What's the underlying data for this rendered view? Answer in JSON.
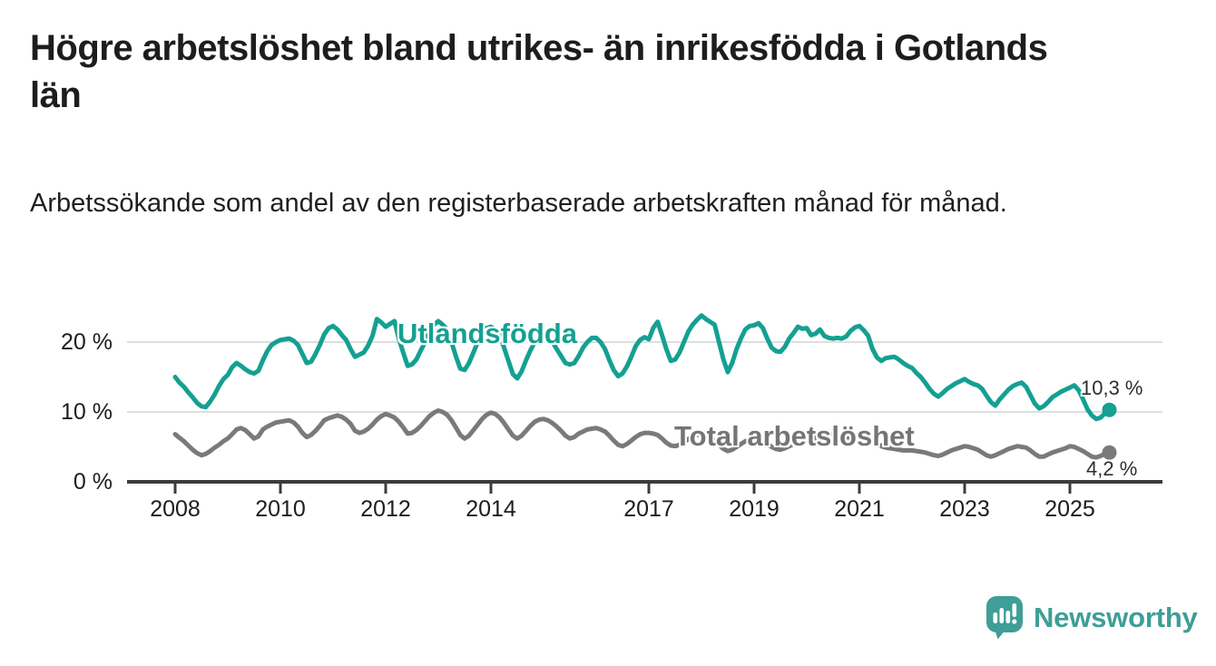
{
  "header": {
    "title": "Högre arbetslöshet bland utrikes- än inrikesfödda i Gotlands län",
    "subtitle": "Arbetssökande som andel av den registerbaserade arbetskraften månad för månad."
  },
  "chart_data": {
    "type": "line",
    "unit": "%",
    "frequency": "monthly",
    "x_start": "2008-01",
    "x_end": "2025-10",
    "grid": true,
    "legend": "inline-labels",
    "colors": {
      "axis": "#3c3c3c",
      "gridline": "#dedede",
      "tick_text": "#1d1d1b"
    },
    "x_axis": {
      "ticks": [
        {
          "year": 2008,
          "label": "2008"
        },
        {
          "year": 2010,
          "label": "2010"
        },
        {
          "year": 2012,
          "label": "2012"
        },
        {
          "year": 2014,
          "label": "2014"
        },
        {
          "year": 2017,
          "label": "2017"
        },
        {
          "year": 2019,
          "label": "2019"
        },
        {
          "year": 2021,
          "label": "2021"
        },
        {
          "year": 2023,
          "label": "2023"
        },
        {
          "year": 2025,
          "label": "2025"
        }
      ]
    },
    "y_axis": {
      "ylim": [
        0,
        25
      ],
      "ticks": [
        {
          "value": 0,
          "label": "0 %"
        },
        {
          "value": 10,
          "label": "10 %"
        },
        {
          "value": 20,
          "label": "20 %"
        }
      ]
    },
    "series": [
      {
        "name": "Utlandsfödda",
        "color": "#14a092",
        "end_label": "10,3 %",
        "end_value": 10.3,
        "values": [
          15.0,
          14.2,
          13.6,
          12.8,
          12.1,
          11.3,
          10.8,
          10.7,
          11.5,
          12.5,
          13.7,
          14.7,
          15.3,
          16.4,
          17.0,
          16.6,
          16.1,
          15.7,
          15.5,
          15.9,
          17.4,
          18.7,
          19.6,
          20.0,
          20.3,
          20.4,
          20.5,
          20.2,
          19.6,
          18.3,
          17.0,
          17.2,
          18.3,
          19.6,
          21.1,
          22.0,
          22.3,
          21.8,
          21.0,
          20.3,
          19.0,
          17.9,
          18.2,
          18.5,
          19.5,
          20.9,
          23.3,
          22.8,
          22.2,
          22.6,
          23.0,
          20.5,
          18.5,
          16.6,
          16.8,
          17.5,
          18.8,
          20.0,
          21.5,
          22.5,
          23.0,
          22.5,
          21.8,
          20.0,
          18.0,
          16.2,
          16.0,
          17.0,
          18.5,
          20.0,
          21.3,
          22.0,
          22.2,
          21.8,
          21.0,
          19.2,
          17.3,
          15.4,
          14.8,
          15.8,
          17.4,
          18.8,
          20.0,
          20.8,
          21.0,
          20.6,
          20.0,
          19.0,
          18.0,
          17.0,
          16.8,
          17.0,
          18.0,
          19.2,
          20.0,
          20.6,
          20.6,
          20.0,
          19.0,
          17.4,
          16.0,
          15.1,
          15.5,
          16.5,
          17.9,
          19.4,
          20.3,
          20.7,
          20.4,
          22.0,
          22.9,
          21.0,
          19.0,
          17.3,
          17.5,
          18.5,
          20.0,
          21.5,
          22.5,
          23.2,
          23.8,
          23.3,
          22.9,
          22.5,
          20.0,
          17.5,
          15.7,
          17.0,
          19.0,
          20.5,
          21.8,
          22.3,
          22.4,
          22.7,
          22.0,
          20.5,
          19.2,
          18.7,
          18.6,
          19.3,
          20.5,
          21.3,
          22.2,
          21.9,
          22.0,
          21.0,
          21.2,
          21.8,
          20.9,
          20.6,
          20.5,
          20.6,
          20.5,
          20.8,
          21.6,
          22.1,
          22.3,
          21.7,
          20.9,
          19.0,
          17.8,
          17.3,
          17.7,
          17.8,
          17.9,
          17.5,
          17.0,
          16.6,
          16.3,
          15.6,
          15.0,
          14.2,
          13.3,
          12.6,
          12.2,
          12.7,
          13.3,
          13.7,
          14.1,
          14.4,
          14.7,
          14.3,
          14.0,
          13.8,
          13.3,
          12.3,
          11.4,
          10.9,
          11.8,
          12.5,
          13.2,
          13.7,
          14.0,
          14.2,
          13.6,
          12.4,
          11.2,
          10.5,
          10.8,
          11.4,
          12.1,
          12.5,
          12.9,
          13.2,
          13.5,
          13.8,
          13.1,
          11.8,
          10.4,
          9.5,
          9.0,
          9.2,
          9.8,
          10.3
        ]
      },
      {
        "name": "Total arbetslöshet",
        "color": "#7a7a7a",
        "end_label": "4,2 %",
        "end_value": 4.2,
        "values": [
          6.8,
          6.3,
          5.8,
          5.2,
          4.6,
          4.1,
          3.8,
          4.0,
          4.4,
          4.9,
          5.3,
          5.8,
          6.2,
          6.8,
          7.5,
          7.7,
          7.4,
          6.8,
          6.2,
          6.5,
          7.5,
          7.9,
          8.2,
          8.5,
          8.6,
          8.7,
          8.8,
          8.5,
          7.9,
          7.0,
          6.4,
          6.7,
          7.3,
          8.0,
          8.8,
          9.1,
          9.3,
          9.5,
          9.3,
          8.9,
          8.3,
          7.3,
          7.0,
          7.2,
          7.6,
          8.2,
          8.9,
          9.4,
          9.7,
          9.5,
          9.2,
          8.6,
          7.8,
          6.9,
          7.0,
          7.4,
          8.0,
          8.7,
          9.4,
          9.9,
          10.2,
          10.0,
          9.6,
          8.8,
          7.8,
          6.7,
          6.2,
          6.6,
          7.4,
          8.2,
          9.0,
          9.6,
          9.9,
          9.7,
          9.2,
          8.4,
          7.5,
          6.6,
          6.2,
          6.6,
          7.3,
          8.0,
          8.6,
          8.9,
          9.0,
          8.8,
          8.4,
          7.9,
          7.3,
          6.6,
          6.2,
          6.4,
          6.9,
          7.2,
          7.5,
          7.6,
          7.7,
          7.5,
          7.2,
          6.6,
          5.9,
          5.3,
          5.1,
          5.4,
          5.9,
          6.4,
          6.8,
          7.0,
          7.0,
          6.9,
          6.7,
          6.2,
          5.6,
          5.2,
          5.1,
          5.3,
          5.7,
          6.1,
          6.5,
          6.7,
          6.8,
          6.6,
          6.4,
          5.9,
          5.3,
          4.7,
          4.4,
          4.6,
          5.0,
          5.4,
          5.8,
          6.0,
          6.1,
          6.0,
          5.8,
          5.4,
          5.0,
          4.7,
          4.6,
          4.8,
          5.1,
          5.4,
          5.6,
          5.8,
          5.9,
          5.9,
          6.2,
          6.8,
          7.0,
          6.9,
          6.8,
          6.7,
          6.6,
          6.4,
          6.3,
          6.3,
          6.4,
          6.3,
          6.1,
          5.8,
          5.5,
          5.1,
          4.9,
          4.8,
          4.7,
          4.6,
          4.5,
          4.5,
          4.5,
          4.4,
          4.3,
          4.2,
          4.0,
          3.8,
          3.7,
          3.9,
          4.2,
          4.5,
          4.7,
          4.9,
          5.1,
          5.0,
          4.8,
          4.6,
          4.2,
          3.8,
          3.6,
          3.8,
          4.1,
          4.4,
          4.7,
          4.9,
          5.1,
          5.0,
          4.9,
          4.5,
          4.0,
          3.6,
          3.6,
          3.9,
          4.2,
          4.4,
          4.6,
          4.8,
          5.1,
          5.0,
          4.7,
          4.4,
          4.0,
          3.6,
          3.5,
          3.7,
          4.0,
          4.2
        ]
      }
    ]
  },
  "branding": {
    "logo_text": "Newsworthy",
    "logo_color": "#3f9e97",
    "logo_icon": "bar-chart-speech-bubble"
  }
}
